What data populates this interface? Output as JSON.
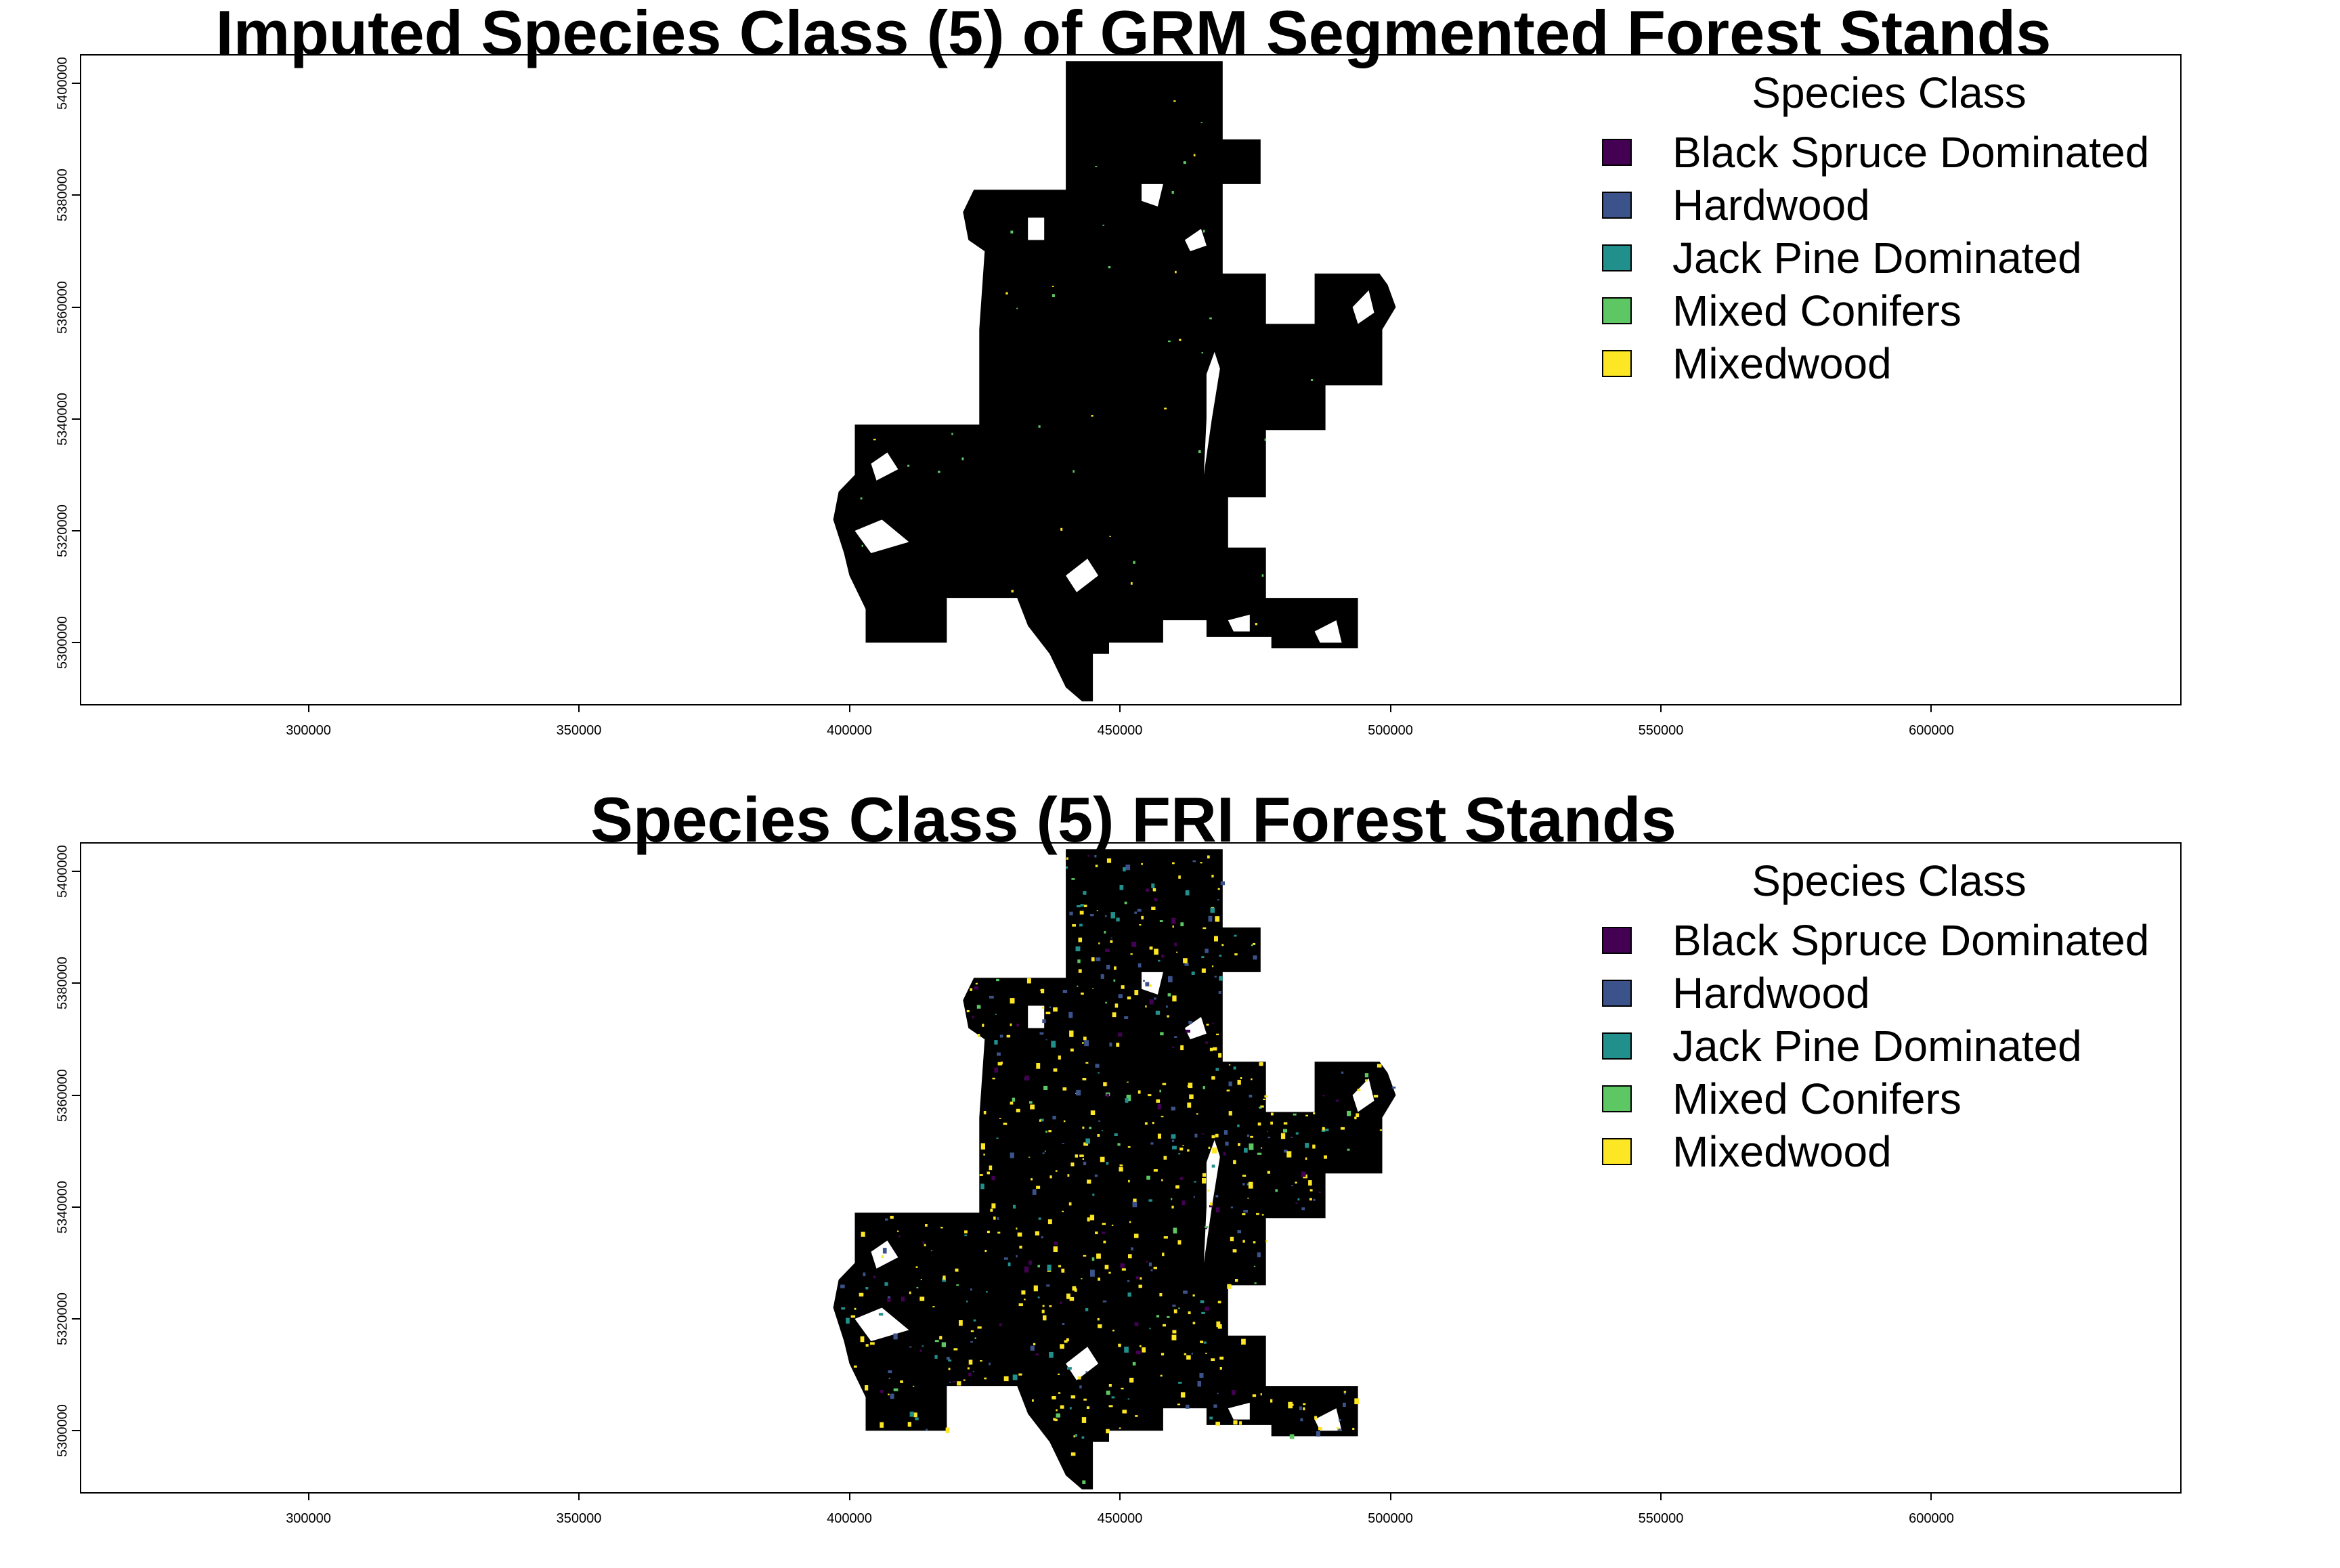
{
  "figure": {
    "panels": [
      {
        "id": "imputed",
        "title": "Imputed Species Class (5) of GRM Segmented Forest Stands",
        "legend_title": "Species Class",
        "legend_items": [
          {
            "label": "Black Spruce Dominated",
            "color": "#440154"
          },
          {
            "label": "Hardwood",
            "color": "#3B528B"
          },
          {
            "label": "Jack Pine Dominated",
            "color": "#21908C"
          },
          {
            "label": "Mixed Conifers",
            "color": "#5DC863"
          },
          {
            "label": "Mixedwood",
            "color": "#FDE725"
          }
        ]
      },
      {
        "id": "fri",
        "title": "Species Class (5) FRI Forest Stands",
        "legend_title": "Species Class",
        "legend_items": [
          {
            "label": "Black Spruce Dominated",
            "color": "#440154"
          },
          {
            "label": "Hardwood",
            "color": "#3B528B"
          },
          {
            "label": "Jack Pine Dominated",
            "color": "#21908C"
          },
          {
            "label": "Mixed Conifers",
            "color": "#5DC863"
          },
          {
            "label": "Mixedwood",
            "color": "#FDE725"
          }
        ]
      }
    ],
    "x_ticks": [
      "300000",
      "350000",
      "400000",
      "450000",
      "500000",
      "550000",
      "600000"
    ],
    "y_ticks": [
      "5300000",
      "5320000",
      "5340000",
      "5360000",
      "5380000",
      "5400000"
    ],
    "x_range": [
      258000,
      646000
    ],
    "y_range": [
      5289000,
      5405000
    ]
  }
}
